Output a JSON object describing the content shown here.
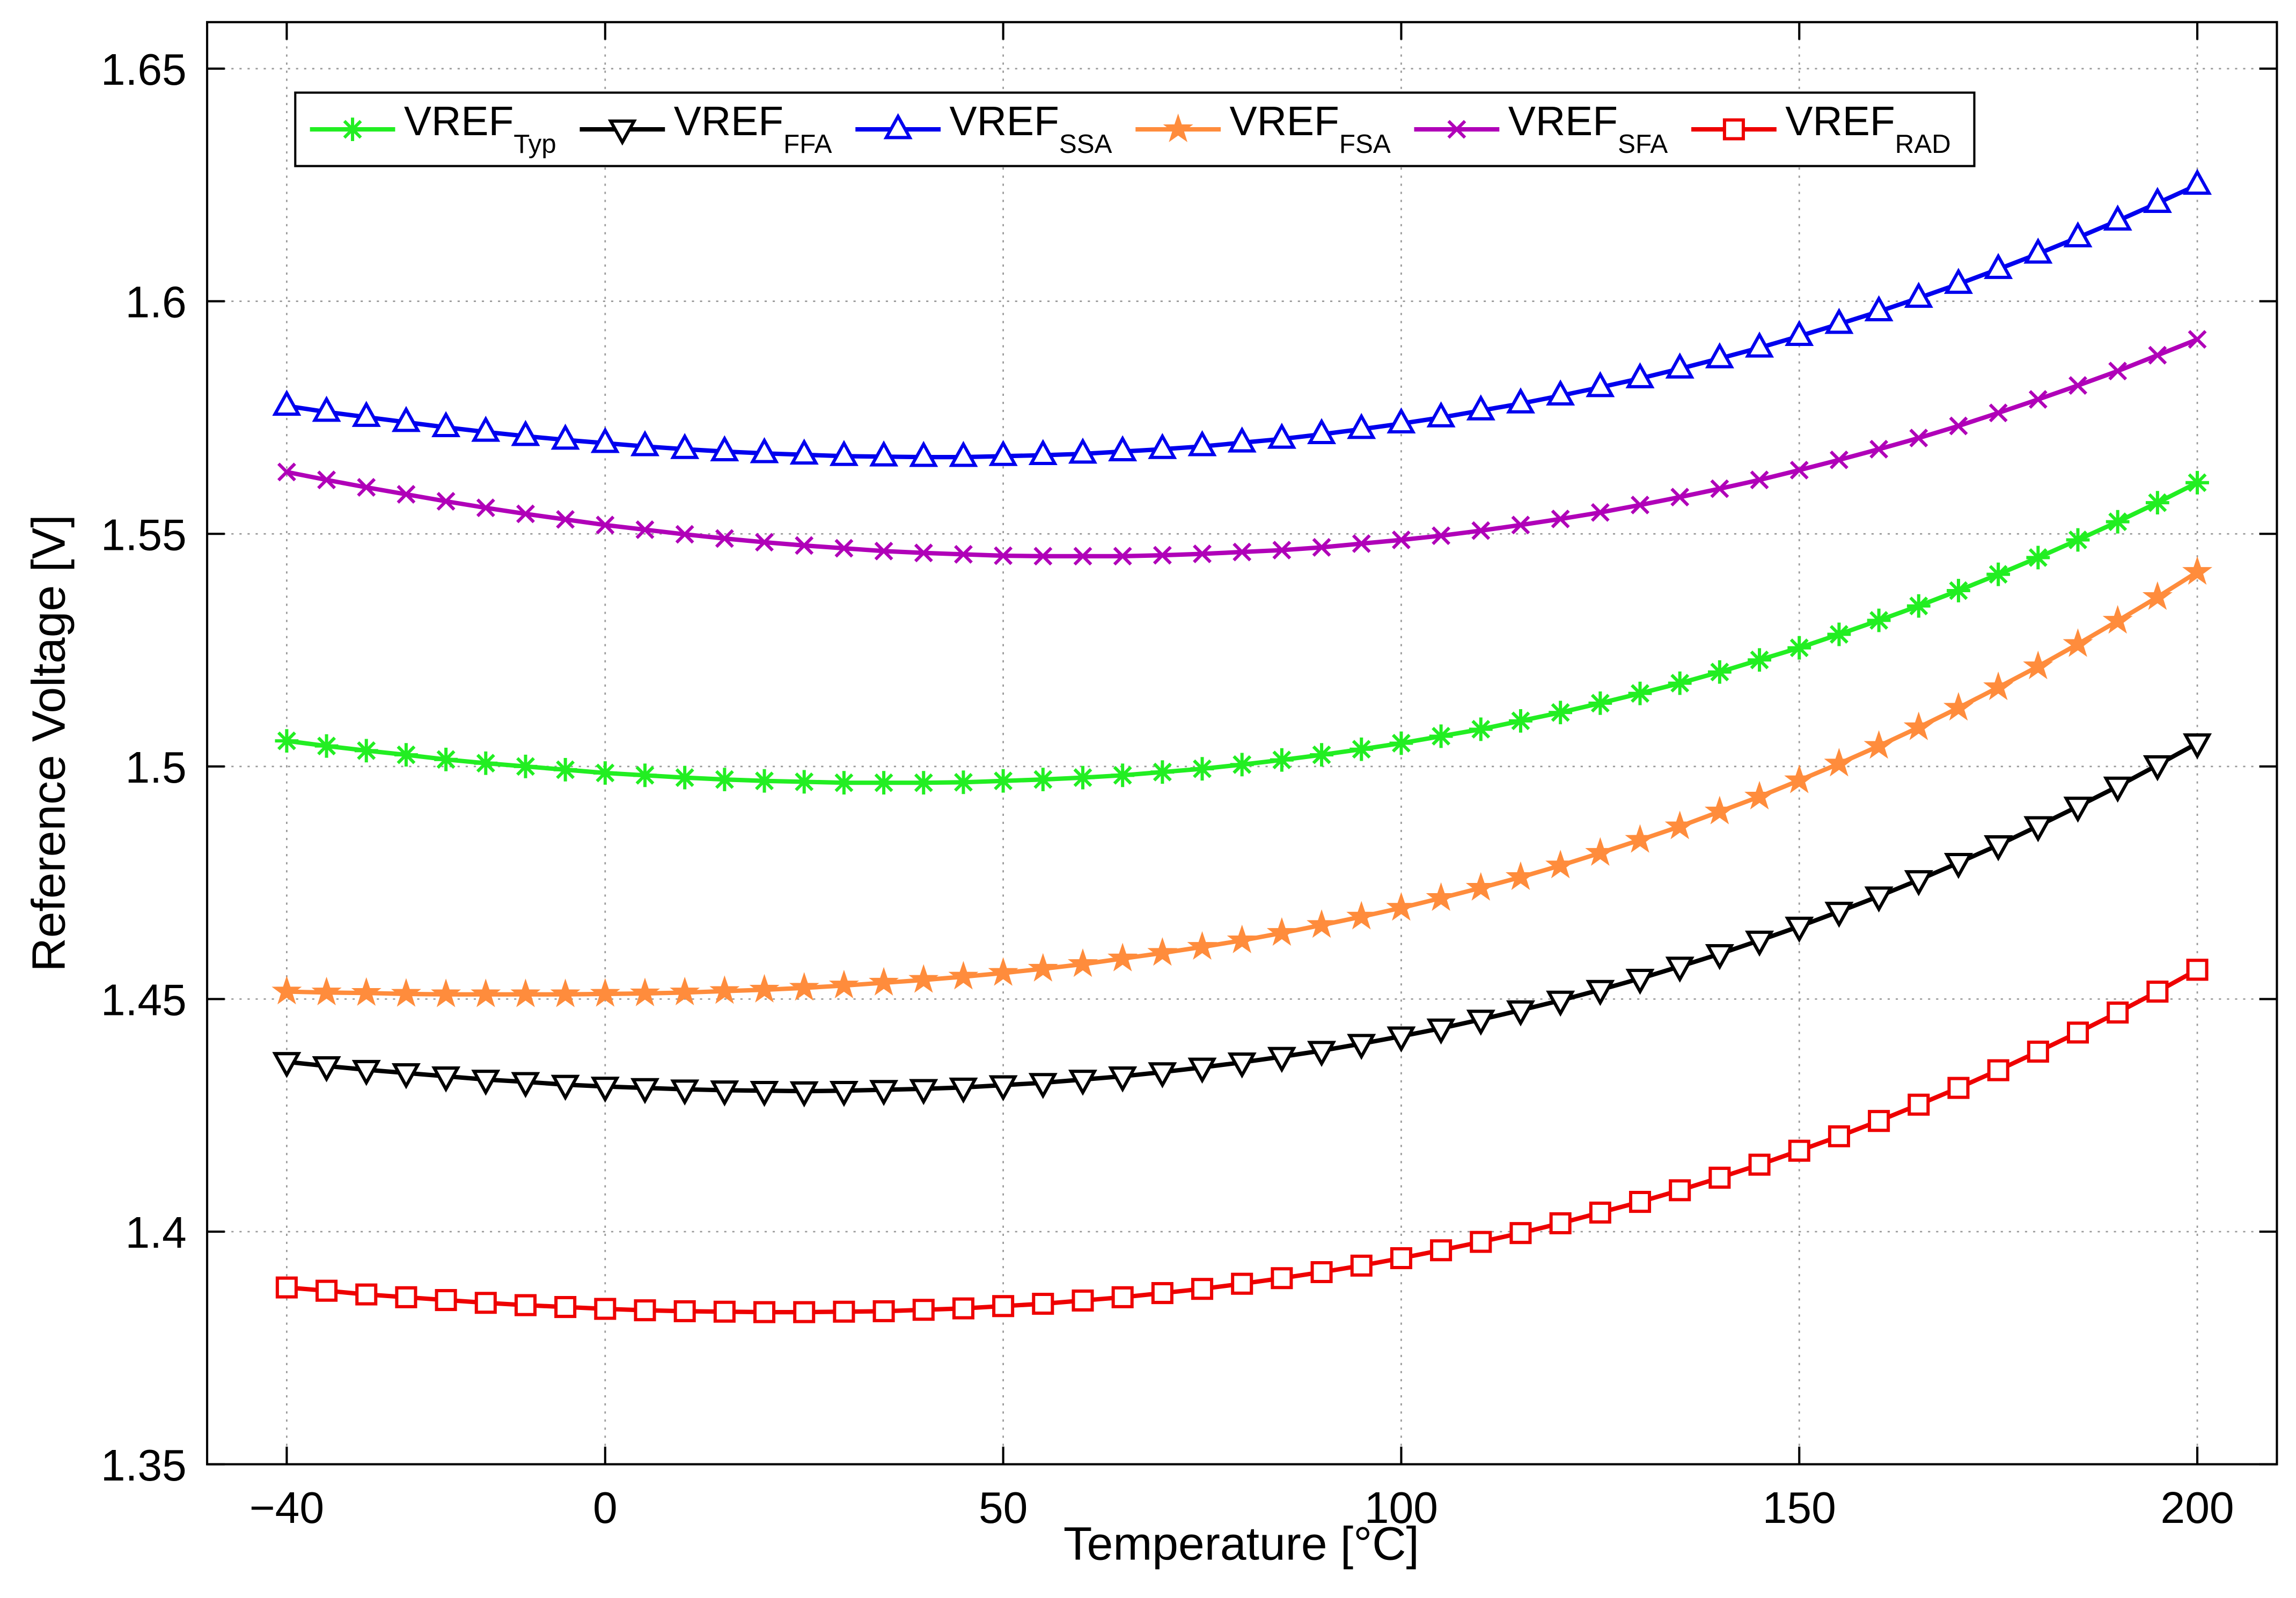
{
  "chart_data": {
    "type": "line",
    "xlabel": "Temperature [°C]",
    "ylabel": "Reference Voltage [V]",
    "x": [
      -40,
      -35,
      -30,
      -25,
      -20,
      -15,
      -10,
      -5,
      0,
      5,
      10,
      15,
      20,
      25,
      30,
      35,
      40,
      45,
      50,
      55,
      60,
      65,
      70,
      75,
      80,
      85,
      90,
      95,
      100,
      105,
      110,
      115,
      120,
      125,
      130,
      135,
      140,
      145,
      150,
      155,
      160,
      165,
      170,
      175,
      180,
      185,
      190,
      195,
      200
    ],
    "xlim": [
      -50,
      210
    ],
    "xticks": [
      -40,
      0,
      50,
      100,
      150,
      200
    ],
    "ylim": [
      1.35,
      1.66
    ],
    "yticks": [
      1.35,
      1.4,
      1.45,
      1.5,
      1.55,
      1.6,
      1.65
    ],
    "grid": true,
    "legend": "top-left",
    "series": [
      {
        "name": "VREF",
        "subscript": "Typ",
        "color": "#22ee22",
        "marker": "asterisk",
        "values": [
          1.5055,
          1.5044,
          1.5034,
          1.5025,
          1.5015,
          1.5007,
          1.5,
          1.4993,
          1.4986,
          1.4981,
          1.4976,
          1.4972,
          1.4969,
          1.4967,
          1.4965,
          1.4965,
          1.4965,
          1.4966,
          1.4969,
          1.4972,
          1.4976,
          1.4981,
          1.4988,
          1.4995,
          1.5004,
          1.5014,
          1.5025,
          1.5037,
          1.505,
          1.5065,
          1.508,
          1.5098,
          1.5116,
          1.5136,
          1.5157,
          1.5179,
          1.5203,
          1.5229,
          1.5255,
          1.5284,
          1.5314,
          1.5345,
          1.5378,
          1.5413,
          1.5449,
          1.5487,
          1.5526,
          1.5567,
          1.561
        ]
      },
      {
        "name": "VREF",
        "subscript": "FFA",
        "color": "#000000",
        "marker": "triangle-down",
        "values": [
          1.4365,
          1.4356,
          1.4348,
          1.4341,
          1.4334,
          1.4327,
          1.4322,
          1.4316,
          1.4312,
          1.4309,
          1.4306,
          1.4304,
          1.4303,
          1.4302,
          1.4303,
          1.4305,
          1.4307,
          1.431,
          1.4315,
          1.432,
          1.4327,
          1.4334,
          1.4343,
          1.4353,
          1.4364,
          1.4376,
          1.4389,
          1.4404,
          1.442,
          1.4437,
          1.4456,
          1.4476,
          1.4497,
          1.452,
          1.4544,
          1.457,
          1.4597,
          1.4626,
          1.4656,
          1.4688,
          1.4721,
          1.4756,
          1.4793,
          1.4831,
          1.4872,
          1.4914,
          1.4957,
          1.5003,
          1.505
        ]
      },
      {
        "name": "VREF",
        "subscript": "SSA",
        "color": "#0000ee",
        "marker": "triangle-up",
        "values": [
          1.5775,
          1.5762,
          1.5751,
          1.574,
          1.5729,
          1.5719,
          1.571,
          1.5702,
          1.5695,
          1.5688,
          1.5682,
          1.5677,
          1.5673,
          1.567,
          1.5667,
          1.5666,
          1.5665,
          1.5665,
          1.5667,
          1.5669,
          1.5672,
          1.5677,
          1.5682,
          1.5688,
          1.5696,
          1.5704,
          1.5714,
          1.5725,
          1.5737,
          1.575,
          1.5765,
          1.578,
          1.5797,
          1.5815,
          1.5834,
          1.5855,
          1.5877,
          1.59,
          1.5925,
          1.5951,
          1.5978,
          1.6007,
          1.6037,
          1.6069,
          1.6102,
          1.6137,
          1.6173,
          1.6211,
          1.625
        ]
      },
      {
        "name": "VREF",
        "subscript": "FSA",
        "color": "#ff8c3c",
        "marker": "star",
        "values": [
          1.4516,
          1.4514,
          1.4513,
          1.4511,
          1.451,
          1.451,
          1.451,
          1.451,
          1.4511,
          1.4512,
          1.4514,
          1.4517,
          1.452,
          1.4524,
          1.4529,
          1.4535,
          1.4541,
          1.4548,
          1.4556,
          1.4565,
          1.4575,
          1.4587,
          1.4599,
          1.4612,
          1.4626,
          1.4642,
          1.4659,
          1.4677,
          1.4696,
          1.4717,
          1.4739,
          1.4762,
          1.4787,
          1.4814,
          1.4842,
          1.4871,
          1.4903,
          1.4935,
          1.497,
          1.5006,
          1.5044,
          1.5084,
          1.5126,
          1.517,
          1.5215,
          1.5263,
          1.5313,
          1.5364,
          1.5418
        ]
      },
      {
        "name": "VREF",
        "subscript": "SFA",
        "color": "#b000b8",
        "marker": "x",
        "values": [
          1.5633,
          1.5616,
          1.56,
          1.5585,
          1.557,
          1.5556,
          1.5543,
          1.5531,
          1.5519,
          1.5509,
          1.5499,
          1.549,
          1.5482,
          1.5475,
          1.5469,
          1.5463,
          1.5459,
          1.5456,
          1.5453,
          1.5452,
          1.5452,
          1.5452,
          1.5454,
          1.5457,
          1.5461,
          1.5465,
          1.5471,
          1.5479,
          1.5487,
          1.5496,
          1.5507,
          1.5519,
          1.5532,
          1.5546,
          1.5562,
          1.5579,
          1.5597,
          1.5616,
          1.5637,
          1.5659,
          1.5682,
          1.5706,
          1.5732,
          1.576,
          1.5789,
          1.5819,
          1.585,
          1.5884,
          1.5918
        ]
      },
      {
        "name": "VREF",
        "subscript": "RAD",
        "color": "#ee0000",
        "marker": "square",
        "values": [
          1.388,
          1.3873,
          1.3865,
          1.3859,
          1.3853,
          1.3847,
          1.3842,
          1.3838,
          1.3834,
          1.3831,
          1.3829,
          1.3828,
          1.3827,
          1.3827,
          1.3828,
          1.3829,
          1.3832,
          1.3835,
          1.384,
          1.3845,
          1.3852,
          1.3859,
          1.3868,
          1.3877,
          1.3888,
          1.39,
          1.3913,
          1.3927,
          1.3943,
          1.396,
          1.3978,
          1.3997,
          1.4018,
          1.4041,
          1.4064,
          1.4089,
          1.4116,
          1.4144,
          1.4174,
          1.4205,
          1.4238,
          1.4273,
          1.4309,
          1.4347,
          1.4387,
          1.4428,
          1.4471,
          1.4516,
          1.4563
        ]
      }
    ]
  }
}
